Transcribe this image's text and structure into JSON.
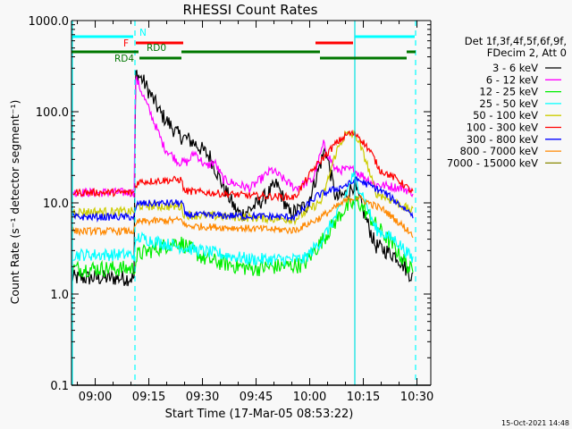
{
  "chart_data": {
    "type": "line",
    "title": "RHESSI Count Rates",
    "xlabel": "Start Time (17-Mar-05 08:53:22)",
    "ylabel": "Count Rate (s⁻¹ detector segment⁻¹)",
    "yscale": "log",
    "ylim": [
      0.1,
      1000
    ],
    "xlim_minutes": [
      0,
      100.5
    ],
    "x_unit": "minutes since 08:53:22",
    "yticks": [
      {
        "value": 1000,
        "label": "1000.0"
      },
      {
        "value": 100,
        "label": "100.0"
      },
      {
        "value": 10,
        "label": "10.0"
      },
      {
        "value": 1,
        "label": "1.0"
      },
      {
        "value": 0.1,
        "label": "0.1"
      }
    ],
    "xticks": [
      {
        "t": 6.633,
        "label": "09:00"
      },
      {
        "t": 21.633,
        "label": "09:15"
      },
      {
        "t": 36.633,
        "label": "09:30"
      },
      {
        "t": 51.633,
        "label": "09:45"
      },
      {
        "t": 66.633,
        "label": "10:00"
      },
      {
        "t": 81.633,
        "label": "10:15"
      },
      {
        "t": 96.633,
        "label": "10:30"
      }
    ],
    "legend": {
      "placement": "right",
      "header": [
        "Det 1f,3f,4f,5f,6f,9f,",
        "FDecim 2, Att 0"
      ]
    },
    "series": [
      {
        "name": "3 - 6 keV",
        "color": "#000000",
        "noise": 0.09,
        "points": [
          [
            0,
            1.5
          ],
          [
            17.5,
            1.5
          ],
          [
            17.9,
            270
          ],
          [
            20,
            220
          ],
          [
            25,
            95
          ],
          [
            30,
            55
          ],
          [
            32.5,
            50
          ],
          [
            34.5,
            45
          ],
          [
            38.75,
            32
          ],
          [
            42.5,
            15
          ],
          [
            46,
            8.3
          ],
          [
            47.5,
            7.4
          ],
          [
            52.5,
            10
          ],
          [
            57.5,
            16
          ],
          [
            61,
            7.5
          ],
          [
            66,
            9.5
          ],
          [
            71,
            40
          ],
          [
            74,
            11
          ],
          [
            77.5,
            13
          ],
          [
            79,
            16
          ],
          [
            85,
            3.4
          ],
          [
            91,
            2.6
          ],
          [
            95.5,
            1.5
          ]
        ]
      },
      {
        "name": "6 - 12 keV",
        "color": "#ff00ff",
        "noise": 0.05,
        "points": [
          [
            0,
            13
          ],
          [
            17.5,
            13
          ],
          [
            17.9,
            240
          ],
          [
            22.5,
            88
          ],
          [
            26,
            40
          ],
          [
            30,
            28
          ],
          [
            32.5,
            28
          ],
          [
            34.5,
            36
          ],
          [
            37.5,
            25
          ],
          [
            40,
            28
          ],
          [
            42.5,
            18
          ],
          [
            46.25,
            16
          ],
          [
            50,
            14.5
          ],
          [
            56,
            23
          ],
          [
            62.5,
            14.5
          ],
          [
            67.5,
            18
          ],
          [
            70.5,
            44
          ],
          [
            73.75,
            23
          ],
          [
            79,
            23
          ],
          [
            85,
            16
          ],
          [
            92.5,
            14.5
          ],
          [
            95.5,
            13
          ]
        ]
      },
      {
        "name": "12 - 25 keV",
        "color": "#00ee00",
        "noise": 0.09,
        "points": [
          [
            0,
            1.9
          ],
          [
            17.5,
            1.9
          ],
          [
            18.5,
            2.7
          ],
          [
            30,
            3.8
          ],
          [
            37.5,
            2.4
          ],
          [
            50,
            1.9
          ],
          [
            65,
            2.1
          ],
          [
            70,
            3.8
          ],
          [
            76,
            8.3
          ],
          [
            80,
            10.5
          ],
          [
            85,
            5.8
          ],
          [
            91,
            3
          ],
          [
            95.5,
            1.7
          ]
        ]
      },
      {
        "name": "25 - 50 keV",
        "color": "#00ffff",
        "noise": 0.07,
        "points": [
          [
            0,
            2.7
          ],
          [
            17.5,
            2.7
          ],
          [
            18.5,
            4.2
          ],
          [
            30,
            3.3
          ],
          [
            50,
            2.4
          ],
          [
            65,
            2.4
          ],
          [
            70,
            3.9
          ],
          [
            75,
            8.3
          ],
          [
            78.75,
            20
          ],
          [
            81.25,
            13
          ],
          [
            85,
            5.2
          ],
          [
            91,
            3.8
          ],
          [
            95.5,
            2.4
          ]
        ]
      },
      {
        "name": "50 - 100 keV",
        "color": "#cccc00",
        "noise": 0.05,
        "points": [
          [
            0,
            8
          ],
          [
            17.5,
            8
          ],
          [
            18.5,
            9.3
          ],
          [
            30.75,
            9.1
          ],
          [
            31.5,
            7.4
          ],
          [
            62.5,
            6.6
          ],
          [
            70,
            10.5
          ],
          [
            74,
            36
          ],
          [
            76.5,
            56
          ],
          [
            79.5,
            56
          ],
          [
            82.5,
            28
          ],
          [
            85,
            13
          ],
          [
            90,
            10.5
          ],
          [
            95.5,
            8
          ]
        ]
      },
      {
        "name": "100 - 300 keV",
        "color": "#ff0000",
        "noise": 0.04,
        "points": [
          [
            0,
            13
          ],
          [
            17.5,
            13
          ],
          [
            18.5,
            17
          ],
          [
            30.75,
            18
          ],
          [
            31.5,
            13.5
          ],
          [
            50,
            12
          ],
          [
            62.5,
            11.5
          ],
          [
            67.5,
            23
          ],
          [
            73.75,
            44
          ],
          [
            77.5,
            58
          ],
          [
            80,
            56
          ],
          [
            83.75,
            36
          ],
          [
            86.25,
            23
          ],
          [
            91.25,
            18
          ],
          [
            95.5,
            13
          ]
        ]
      },
      {
        "name": "300 - 800 keV",
        "color": "#0000ff",
        "noise": 0.04,
        "points": [
          [
            0,
            7
          ],
          [
            17.5,
            7
          ],
          [
            18.5,
            9.8
          ],
          [
            31,
            10
          ],
          [
            31.75,
            7.4
          ],
          [
            62.5,
            7
          ],
          [
            68.75,
            12
          ],
          [
            77.5,
            16
          ],
          [
            80,
            18
          ],
          [
            87.5,
            13
          ],
          [
            95.5,
            7.4
          ]
        ]
      },
      {
        "name": "800 - 7000 keV",
        "color": "#ff8800",
        "noise": 0.04,
        "points": [
          [
            0,
            4.9
          ],
          [
            17.5,
            4.9
          ],
          [
            18.5,
            6.2
          ],
          [
            31,
            6.5
          ],
          [
            31.75,
            5.6
          ],
          [
            62.5,
            5
          ],
          [
            68.75,
            6.6
          ],
          [
            77.5,
            11
          ],
          [
            80,
            11.5
          ],
          [
            87.5,
            8.3
          ],
          [
            95.5,
            4.5
          ]
        ]
      },
      {
        "name": "7000 - 15000 keV",
        "color": "#888800",
        "noise": 0,
        "points": []
      }
    ],
    "vertical_lines": [
      {
        "t": 0.25,
        "style": "solid",
        "color": "#00ffff"
      },
      {
        "t": 17.75,
        "style": "dashed",
        "color": "#00ffff"
      },
      {
        "t": 79.25,
        "style": "solid",
        "color": "#00e0e0"
      },
      {
        "t": 96.25,
        "style": "dashed",
        "color": "#00ffff"
      }
    ],
    "state_bars": [
      {
        "label": "N",
        "color": "#00ffff",
        "row": 0,
        "label_t": 19,
        "label_side": "above",
        "intervals": [
          [
            0,
            17.25
          ],
          [
            79.25,
            96
          ]
        ]
      },
      {
        "label": "F",
        "color": "#ff0000",
        "row": 1,
        "label_t": 14.5,
        "label_side": "left",
        "intervals": [
          [
            18,
            31.25
          ],
          [
            68.25,
            78.75
          ]
        ]
      },
      {
        "label": "RD0",
        "color": "#007700",
        "row": 2,
        "label_t": 21,
        "label_side": "above",
        "intervals": [
          [
            0,
            18.75
          ],
          [
            30.75,
            69.5
          ],
          [
            93.75,
            96.25
          ]
        ]
      },
      {
        "label": "RD4",
        "color": "#007700",
        "row": 3,
        "label_t": 12,
        "label_side": "left",
        "intervals": [
          [
            19,
            30.75
          ],
          [
            69.5,
            93.75
          ]
        ]
      }
    ]
  },
  "footer": {
    "timestamp": "15-Oct-2021 14:48"
  }
}
